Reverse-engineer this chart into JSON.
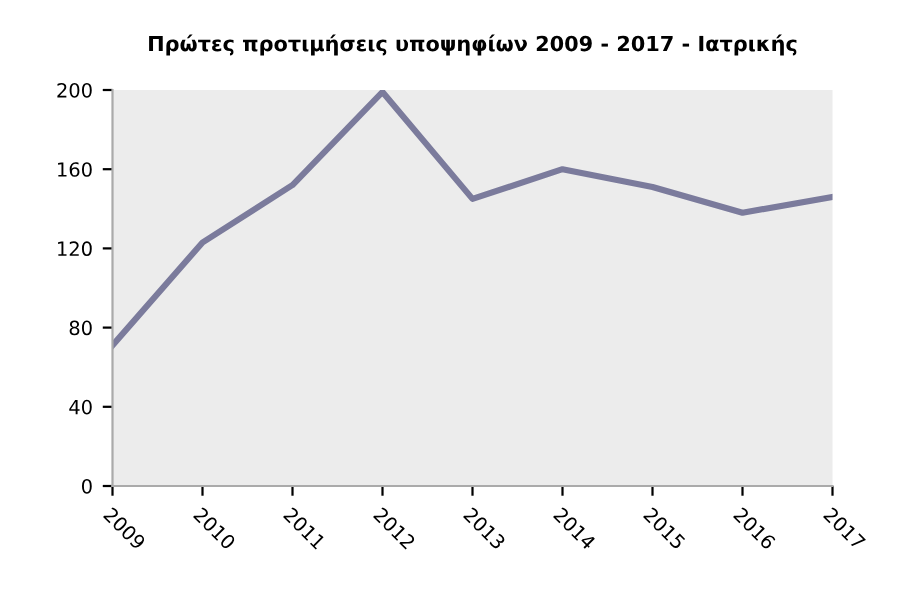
{
  "chart_data": {
    "type": "line",
    "title": "Πρώτες προτιμήσεις υποψηφίων 2009 - 2017 - Ιατρικής",
    "x": [
      2009,
      2010,
      2011,
      2012,
      2013,
      2014,
      2015,
      2016,
      2017
    ],
    "series": [
      {
        "color": "#7b7b9c",
        "values": [
          71,
          123,
          152,
          199,
          145,
          160,
          151,
          138,
          146
        ]
      }
    ],
    "xlim": [
      2009,
      2017
    ],
    "xticks": [
      2009,
      2010,
      2011,
      2012,
      2013,
      2014,
      2015,
      2016,
      2017
    ],
    "ylim": [
      0,
      200
    ],
    "yticks": [
      0,
      40,
      80,
      120,
      160,
      200
    ],
    "grid": false,
    "legend": false,
    "marker": "none",
    "line_style": "solid"
  }
}
